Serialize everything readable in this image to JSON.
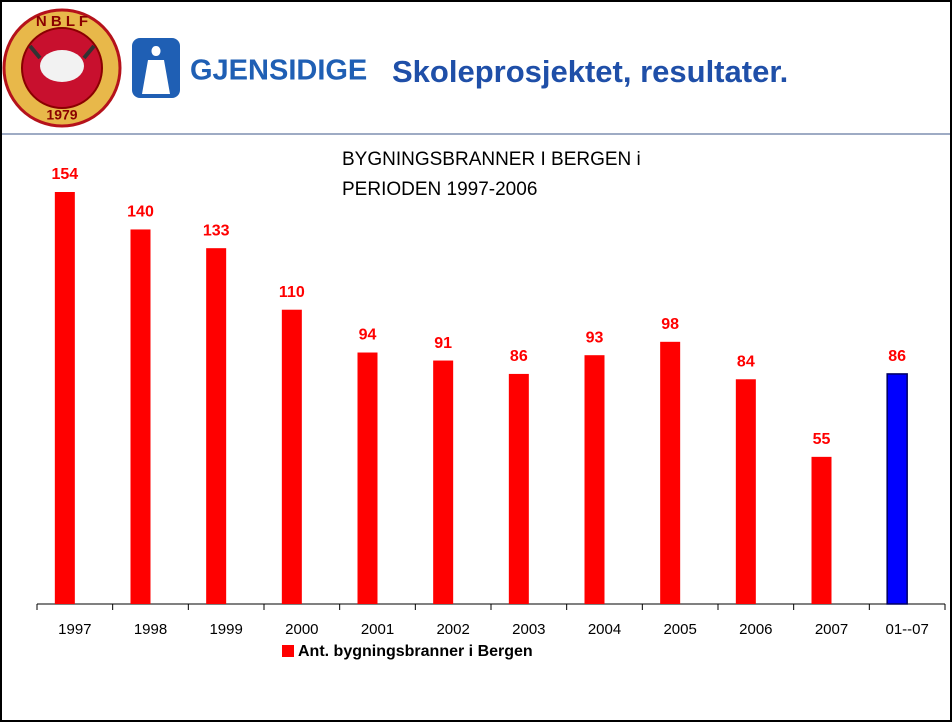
{
  "header": {
    "badge_top": "N B L F",
    "badge_year": "1979",
    "brand": "GJENSIDIGE",
    "title": "Skoleprosjektet, resultater."
  },
  "chart_data": {
    "type": "bar",
    "title": [
      "BYGNINGSBRANNER I BERGEN i",
      "PERIODEN 1997-2006"
    ],
    "categories": [
      "1997",
      "1998",
      "1999",
      "2000",
      "2001",
      "2002",
      "2003",
      "2004",
      "2005",
      "2006",
      "2007",
      "01--07"
    ],
    "series": [
      {
        "name": "Ant. bygningsbranner i Bergen",
        "color": "#ff0000",
        "values": [
          154,
          140,
          133,
          110,
          94,
          91,
          86,
          93,
          98,
          84,
          55,
          86
        ]
      }
    ],
    "bar_colors": [
      "#ff0000",
      "#ff0000",
      "#ff0000",
      "#ff0000",
      "#ff0000",
      "#ff0000",
      "#ff0000",
      "#ff0000",
      "#ff0000",
      "#ff0000",
      "#ff0000",
      "#0000ff"
    ],
    "legend": "bottom"
  }
}
